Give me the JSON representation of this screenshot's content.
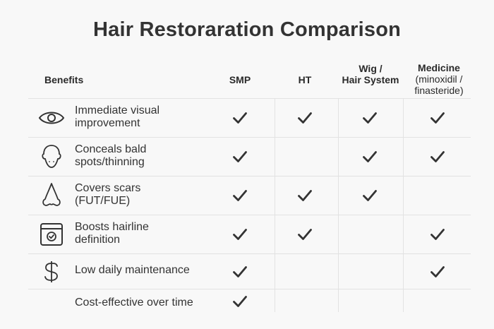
{
  "title": "Hair Restoraration Comparison",
  "table": {
    "columns": [
      {
        "key": "benefits",
        "label": "Benefits"
      },
      {
        "key": "smp",
        "label": "SMP"
      },
      {
        "key": "ht",
        "label": "HT"
      },
      {
        "key": "wig",
        "label_line1": "Wig /",
        "label_line2": "Hair System"
      },
      {
        "key": "medicine",
        "label_line1": "Medicine",
        "label_line2": "(minoxidil /",
        "label_line3": "finasteride)"
      }
    ],
    "rows": [
      {
        "icon": "eye-icon",
        "line1": "Immediate visual",
        "line2": "improvement",
        "smp": true,
        "ht": true,
        "wig": true,
        "medicine": true
      },
      {
        "icon": "head-icon",
        "line1": "Conceals bald",
        "line2": "spots/thinning",
        "smp": true,
        "ht": false,
        "wig": true,
        "medicine": true
      },
      {
        "icon": "nose-icon",
        "line1": "Covers scars",
        "line2": "(FUT/FUE)",
        "smp": true,
        "ht": true,
        "wig": true,
        "medicine": false
      },
      {
        "icon": "calendar-check-icon",
        "line1": "Boosts hairline",
        "line2": "definition",
        "smp": true,
        "ht": true,
        "wig": false,
        "medicine": true
      },
      {
        "icon": "dollar-icon",
        "line1": "Low daily maintenance",
        "smp": true,
        "ht": false,
        "wig": false,
        "medicine": true
      },
      {
        "icon": "none",
        "line1": "Cost-effective over time",
        "smp": true,
        "ht": false,
        "wig": false,
        "medicine": false
      }
    ]
  },
  "colors": {
    "background": "#f8f8f8",
    "text": "#333333",
    "check": "#333333",
    "grid": "#e2e2e2"
  }
}
